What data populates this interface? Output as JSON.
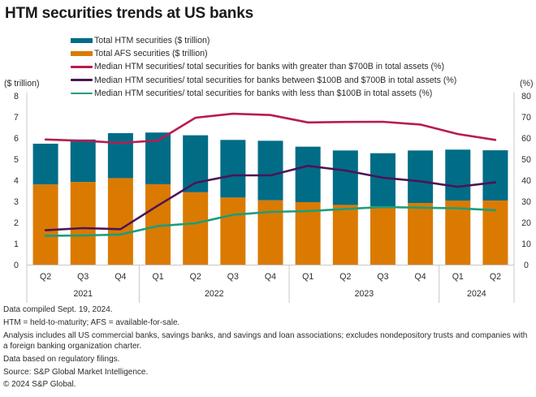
{
  "title": "HTM securities trends at US banks",
  "colors": {
    "htm": "#006C86",
    "afs": "#DB7A00",
    "large": "#B71C50",
    "mid": "#4B1556",
    "small": "#1B9E7B",
    "axis": "#c8c8c8"
  },
  "chart_data": {
    "type": "bar",
    "stacked": true,
    "title": "HTM securities trends at US banks",
    "categories": [
      "Q2",
      "Q3",
      "Q4",
      "Q1",
      "Q2",
      "Q3",
      "Q4",
      "Q1",
      "Q2",
      "Q3",
      "Q4",
      "Q1",
      "Q2"
    ],
    "years": [
      {
        "label": "2021",
        "count": 3
      },
      {
        "label": "2022",
        "count": 4
      },
      {
        "label": "2023",
        "count": 4
      },
      {
        "label": "2024",
        "count": 2
      }
    ],
    "ylabel_left": "($ trillion)",
    "ylabel_right": "(%)",
    "ylim_left": [
      0,
      8
    ],
    "yticks_left": [
      0,
      1,
      2,
      3,
      4,
      5,
      6,
      7,
      8
    ],
    "ylim_right": [
      0,
      80
    ],
    "yticks_right": [
      0,
      10,
      20,
      30,
      40,
      50,
      60,
      70,
      80
    ],
    "legend_position": "top",
    "bar_series": [
      {
        "key": "afs",
        "name": "Total AFS securities ($ trillion)",
        "axis": "left",
        "values": [
          3.8,
          3.92,
          4.1,
          3.81,
          3.43,
          3.18,
          3.05,
          2.96,
          2.83,
          2.77,
          2.92,
          3.03,
          3.04
        ]
      },
      {
        "key": "htm",
        "name": "Total HTM securities ($ trillion)",
        "axis": "left",
        "values": [
          1.93,
          2.01,
          2.13,
          2.45,
          2.7,
          2.73,
          2.82,
          2.63,
          2.58,
          2.51,
          2.49,
          2.42,
          2.38
        ]
      }
    ],
    "line_series": [
      {
        "key": "large",
        "name": "Median HTM securities/ total securities for banks with greater than $700B in total assets (%)",
        "axis": "right",
        "values": [
          59.3,
          58.7,
          57.7,
          58.8,
          69.6,
          71.5,
          70.9,
          67.4,
          67.6,
          67.7,
          66.4,
          61.9,
          59.1
        ]
      },
      {
        "key": "mid",
        "name": "Median HTM securities/ total securities for banks between $100B and $700B in total assets (%)",
        "axis": "right",
        "values": [
          16.3,
          17.3,
          16.8,
          28.0,
          38.8,
          42.3,
          42.3,
          46.8,
          44.6,
          41.2,
          39.5,
          36.9,
          39.0
        ]
      },
      {
        "key": "small",
        "name": "Median HTM securities/ total securities for banks with less than $100B in total assets (%)",
        "axis": "right",
        "values": [
          13.7,
          13.8,
          14.3,
          18.3,
          19.6,
          23.6,
          25.0,
          25.4,
          26.4,
          27.3,
          27.0,
          26.7,
          25.8
        ]
      }
    ]
  },
  "legend": [
    {
      "key": "htm",
      "label": "Total HTM securities ($ trillion)",
      "kind": "bar"
    },
    {
      "key": "afs",
      "label": "Total AFS securities ($ trillion)",
      "kind": "bar"
    },
    {
      "key": "large",
      "label": "Median HTM securities/ total securities for banks with greater than $700B in total assets (%)",
      "kind": "line"
    },
    {
      "key": "mid",
      "label": "Median HTM securities/ total securities for banks between $100B and $700B in total assets (%)",
      "kind": "line"
    },
    {
      "key": "small",
      "label": "Median HTM securities/ total securities for banks with less than $100B in total assets (%)",
      "kind": "line"
    }
  ],
  "footnotes": [
    "Data compiled Sept. 19, 2024.",
    "HTM = held-to-maturity; AFS = available-for-sale.",
    "Analysis includes all US commercial banks, savings banks, and savings and loan associations; excludes nondepository trusts and companies with a foreign banking organization charter.",
    "Data based on regulatory filings.",
    "Source: S&P Global Market Intelligence.",
    "© 2024 S&P Global."
  ]
}
